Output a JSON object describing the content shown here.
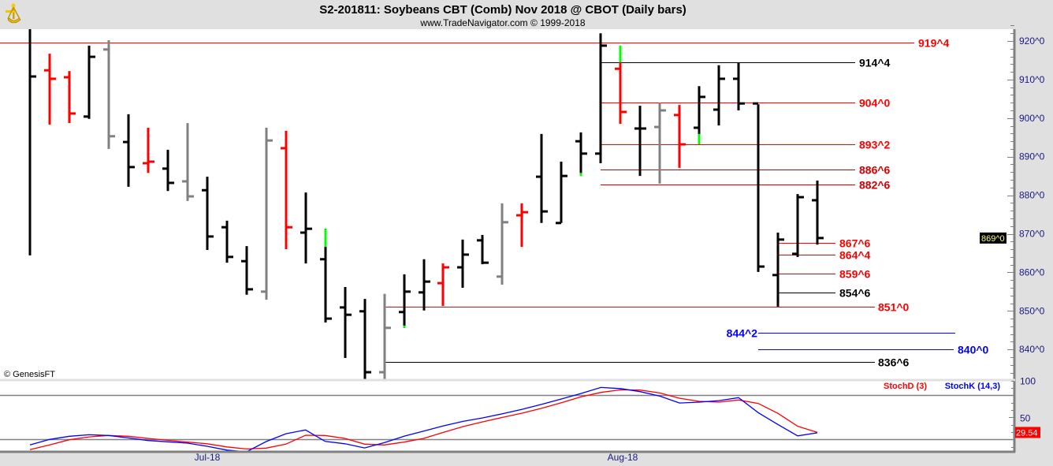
{
  "header": {
    "title": "S2-201811:  Soybeans CBT (Comb) Nov 2018 @ CBOT  (Daily bars)",
    "subtitle": "www.TradeNavigator.com © 1999-2018",
    "logo_icon": "sextant-icon"
  },
  "copyright": "© GenesisFT",
  "colors": {
    "up": "#000000",
    "down": "#ff0000",
    "neutral": "#808080",
    "highlight": "#00ff00",
    "stochD": "#ff0000",
    "stochK": "#0000ff",
    "axis_text": "#1a1a80"
  },
  "chart_data": [
    {
      "type": "ohlc",
      "title": "S2-201811:  Soybeans CBT (Comb) Nov 2018 @ CBOT  (Daily bars)",
      "ylim": [
        832,
        924
      ],
      "y_ticks": [
        840,
        850,
        860,
        870,
        880,
        890,
        900,
        910,
        920
      ],
      "y_tick_labels": [
        "840^0",
        "850^0",
        "860^0",
        "870^0",
        "880^0",
        "890^0",
        "900^0",
        "910^0",
        "920^0"
      ],
      "x_tick_labels": [
        "Jul-18",
        "Aug-18"
      ],
      "last_price_label": "869^0",
      "bars": [
        {
          "o": null,
          "h": 924,
          "l": 864.4,
          "c": 910.8,
          "color": "black"
        },
        {
          "o": 912.4,
          "h": 916.7,
          "l": 898.3,
          "c": 910.2,
          "color": "red"
        },
        {
          "o": 910.6,
          "h": 912.2,
          "l": 898.7,
          "c": 901.2,
          "color": "red"
        },
        {
          "o": 900.4,
          "h": 918.8,
          "l": 899.8,
          "c": 915.9,
          "color": "black"
        },
        {
          "o": 917.8,
          "h": 920.2,
          "l": 892.0,
          "c": 895.3,
          "color": "gray"
        },
        {
          "o": 893.8,
          "h": 901.0,
          "l": 882.2,
          "c": 887.3,
          "color": "black"
        },
        {
          "o": 888.3,
          "h": 897.5,
          "l": 885.8,
          "c": 888.7,
          "color": "red"
        },
        {
          "o": 886.9,
          "h": 891.8,
          "l": 881.1,
          "c": 883.2,
          "color": "black"
        },
        {
          "o": 883.6,
          "h": 898.7,
          "l": 878.5,
          "c": 879.7,
          "color": "gray"
        },
        {
          "o": 881.3,
          "h": 884.8,
          "l": 865.8,
          "c": 869.3,
          "color": "black"
        },
        {
          "o": 871.7,
          "h": 873.4,
          "l": 862.5,
          "c": 864.0,
          "color": "black"
        },
        {
          "o": 862.9,
          "h": 866.8,
          "l": 854.2,
          "c": 855.6,
          "color": "black"
        },
        {
          "o": 855.0,
          "h": 897.5,
          "l": 852.9,
          "c": 894.2,
          "color": "gray"
        },
        {
          "o": 892.2,
          "h": 896.7,
          "l": 866.0,
          "c": 871.7,
          "color": "red"
        },
        {
          "o": 870.3,
          "h": 880.7,
          "l": 862.3,
          "c": 871.3,
          "color": "black"
        },
        {
          "o": 863.4,
          "h": 871.3,
          "l": 847.0,
          "c": 848.0,
          "color": "black",
          "green": [
            866.6,
            871.3
          ]
        },
        {
          "o": 850.9,
          "h": 856.2,
          "l": 837.8,
          "c": 849.0,
          "color": "black"
        },
        {
          "o": 849.9,
          "h": 853.1,
          "l": 832.3,
          "c": 834.1,
          "color": "black"
        },
        {
          "o": 834.1,
          "h": 854.4,
          "l": 832.3,
          "c": 845.6,
          "color": "gray"
        },
        {
          "o": 849.7,
          "h": 859.5,
          "l": 845.6,
          "c": 855.0,
          "color": "black",
          "green": [
            845.6,
            846.2
          ]
        },
        {
          "o": 854.8,
          "h": 863.4,
          "l": 850.1,
          "c": 857.6,
          "color": "black"
        },
        {
          "o": 857.2,
          "h": 862.3,
          "l": 851.3,
          "c": 861.3,
          "color": "red"
        },
        {
          "o": 861.3,
          "h": 868.5,
          "l": 856.0,
          "c": 864.6,
          "color": "black"
        },
        {
          "o": 868.3,
          "h": 869.7,
          "l": 862.1,
          "c": 862.5,
          "color": "black"
        },
        {
          "o": 858.9,
          "h": 877.9,
          "l": 856.8,
          "c": 873.0,
          "color": "gray"
        },
        {
          "o": 874.8,
          "h": 877.9,
          "l": 866.6,
          "c": 875.6,
          "color": "red"
        },
        {
          "o": 884.8,
          "h": 895.9,
          "l": 872.8,
          "c": 875.8,
          "color": "black"
        },
        {
          "o": 872.8,
          "h": 888.7,
          "l": 872.8,
          "c": 885.0,
          "color": "black"
        },
        {
          "o": 894.0,
          "h": 896.3,
          "l": 885.0,
          "c": 890.8,
          "color": "black",
          "green": [
            885.0,
            885.8
          ]
        },
        {
          "o": 890.8,
          "h": 922.0,
          "l": 888.3,
          "c": 918.8,
          "color": "black"
        },
        {
          "o": 912.8,
          "h": 918.8,
          "l": 898.5,
          "c": 901.6,
          "color": "red",
          "green": [
            914.5,
            918.8
          ]
        },
        {
          "o": 897.3,
          "h": 903.2,
          "l": 885.0,
          "c": 897.3,
          "color": "black"
        },
        {
          "o": 897.7,
          "h": 904.0,
          "l": 883.0,
          "c": 902.0,
          "color": "gray"
        },
        {
          "o": 900.8,
          "h": 903.4,
          "l": 887.1,
          "c": 893.2,
          "color": "red"
        },
        {
          "o": 897.5,
          "h": 908.3,
          "l": 893.2,
          "c": 905.5,
          "color": "black",
          "green": [
            893.2,
            895.9
          ]
        },
        {
          "o": 902.2,
          "h": 913.7,
          "l": 898.1,
          "c": 910.2,
          "color": "black"
        },
        {
          "o": 910.2,
          "h": 914.3,
          "l": 902.0,
          "c": 903.8,
          "color": "black"
        },
        {
          "o": 903.8,
          "h": 903.6,
          "l": 860.1,
          "c": 861.5,
          "color": "black"
        },
        {
          "o": 859.3,
          "h": 870.3,
          "l": 851.1,
          "c": 868.5,
          "color": "black"
        },
        {
          "o": 864.8,
          "h": 880.3,
          "l": 864.0,
          "c": 879.5,
          "color": "black"
        },
        {
          "o": 878.7,
          "h": 883.8,
          "l": 867.2,
          "c": 868.9,
          "color": "black"
        }
      ],
      "levels": [
        {
          "price": 919.5,
          "label": "919^4",
          "color": "#ff0000"
        },
        {
          "price": 914.5,
          "label": "914^4",
          "color": "#000000"
        },
        {
          "price": 904.0,
          "label": "904^0",
          "color": "#ff0000"
        },
        {
          "price": 893.25,
          "label": "893^2",
          "color": "#ff0000"
        },
        {
          "price": 886.75,
          "label": "886^6",
          "color": "#d00000"
        },
        {
          "price": 882.75,
          "label": "882^6",
          "color": "#d00000"
        },
        {
          "price": 867.75,
          "label": "867^6",
          "color": "#ff0000"
        },
        {
          "price": 864.5,
          "label": "864^4",
          "color": "#ff0000"
        },
        {
          "price": 859.75,
          "label": "859^6",
          "color": "#ff0000"
        },
        {
          "price": 854.75,
          "label": "854^6",
          "color": "#000000"
        },
        {
          "price": 851.0,
          "label": "851^0",
          "color": "#ff0000"
        },
        {
          "price": 844.25,
          "label": "844^2",
          "color": "#0000ff"
        },
        {
          "price": 840.0,
          "label": "840^0",
          "color": "#0000ff"
        },
        {
          "price": 836.75,
          "label": "836^6",
          "color": "#000000"
        }
      ]
    },
    {
      "type": "line",
      "ylim": [
        0,
        100
      ],
      "y_tick_labels": [
        "100",
        "50"
      ],
      "reference_lines": [
        80,
        20
      ],
      "legend": [
        "StochD (3)",
        "StochK (14,3)"
      ],
      "last_value_label": "29.54",
      "series": [
        {
          "name": "StochD (3)",
          "values": [
            6.1,
            12.5,
            19.6,
            23.5,
            25.4,
            24.3,
            21.4,
            18.9,
            16.4,
            14.2,
            9.9,
            7.1,
            8.2,
            13.6,
            25.7,
            25.4,
            21.4,
            13.6,
            12.5,
            16.4,
            21.4,
            29.6,
            37.5,
            43.9,
            50.0,
            55.7,
            62.4,
            70.0,
            77.9,
            83.9,
            87.5,
            87.1,
            83.2,
            76.0,
            71.8,
            70.7,
            73.6,
            68.9,
            55.4,
            38.1,
            29.54
          ]
        },
        {
          "name": "StochK (14,3)",
          "values": [
            12.5,
            20.0,
            24.3,
            26.4,
            25.4,
            22.1,
            18.5,
            16.8,
            15.0,
            10.7,
            5.6,
            3.2,
            17.1,
            27.8,
            32.9,
            17.4,
            14.2,
            8.5,
            15.7,
            24.3,
            31.4,
            38.5,
            44.6,
            49.3,
            54.9,
            61.0,
            67.8,
            75.0,
            82.5,
            90.7,
            89.2,
            85.0,
            78.9,
            69.6,
            70.7,
            72.8,
            76.8,
            56.4,
            40.3,
            24.9,
            29.0
          ]
        }
      ]
    }
  ]
}
